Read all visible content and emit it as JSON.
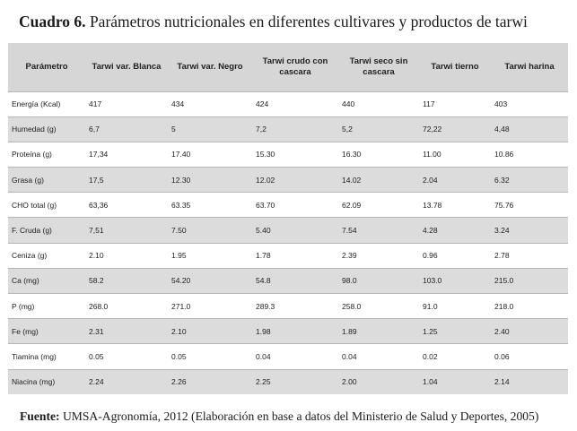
{
  "caption": {
    "label": "Cuadro 6.",
    "title": "Parámetros nutricionales en diferentes cultivares y productos de tarwi"
  },
  "table": {
    "headers": [
      "Parámetro",
      "Tarwi var. Blanca",
      "Tarwi var. Negro",
      "Tarwi crudo con cascara",
      "Tarwi seco sin cascara",
      "Tarwi tierno",
      "Tarwi harina"
    ],
    "rows": [
      [
        "Energía (Kcal)",
        "417",
        "434",
        "424",
        "440",
        "117",
        "403"
      ],
      [
        "Humedad (g)",
        "6,7",
        "5",
        "7,2",
        "5,2",
        "72,22",
        "4,48"
      ],
      [
        "Proteína (g)",
        "17,34",
        "17.40",
        "15.30",
        "16.30",
        "11.00",
        "10.86"
      ],
      [
        "Grasa (g)",
        "17,5",
        "12.30",
        "12.02",
        "14.02",
        "2.04",
        "6.32"
      ],
      [
        "CHO total (g)",
        "63,36",
        "63.35",
        "63.70",
        "62.09",
        "13.78",
        "75.76"
      ],
      [
        "F. Cruda (g)",
        "7,51",
        "7.50",
        "5.40",
        "7.54",
        "4.28",
        "3.24"
      ],
      [
        "Ceniza (g)",
        "2.10",
        "1.95",
        "1.78",
        "2.39",
        "0.96",
        "2.78"
      ],
      [
        "Ca (mg)",
        "58.2",
        "54.20",
        "54.8",
        "98.0",
        "103.0",
        "215.0"
      ],
      [
        "P (mg)",
        "268.0",
        "271.0",
        "289.3",
        "258.0",
        "91.0",
        "218.0"
      ],
      [
        "Fe (mg)",
        "2.31",
        "2.10",
        "1.98",
        "1.89",
        "1.25",
        "2.40"
      ],
      [
        "Tiamina (mg)",
        "0.05",
        "0.05",
        "0.04",
        "0.04",
        "0.02",
        "0.06"
      ],
      [
        "Niacina (mg)",
        "2.24",
        "2.26",
        "2.25",
        "2.00",
        "1.04",
        "2.14"
      ]
    ]
  },
  "footer": {
    "label": "Fuente:",
    "text": "UMSA-Agronomía, 2012 (Elaboración en base a datos del Ministerio de Salud y Deportes, 2005)"
  }
}
